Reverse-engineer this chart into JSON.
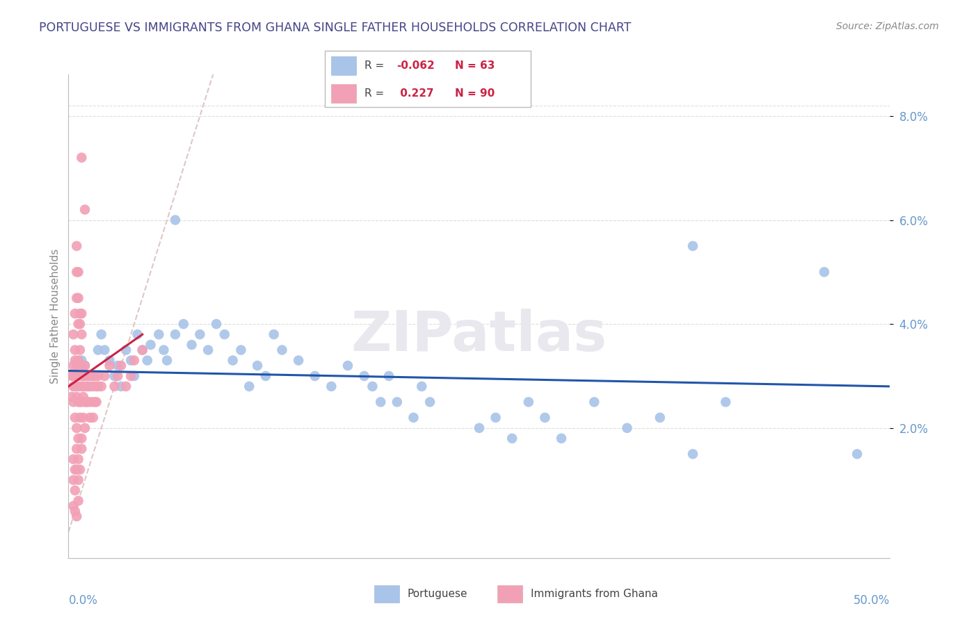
{
  "title": "PORTUGUESE VS IMMIGRANTS FROM GHANA SINGLE FATHER HOUSEHOLDS CORRELATION CHART",
  "source": "Source: ZipAtlas.com",
  "ylabel": "Single Father Households",
  "ytick_labels": [
    "2.0%",
    "4.0%",
    "6.0%",
    "8.0%"
  ],
  "ytick_values": [
    0.02,
    0.04,
    0.06,
    0.08
  ],
  "xlim": [
    0.0,
    0.5
  ],
  "ylim": [
    -0.005,
    0.088
  ],
  "legend_blue_label": "Portuguese",
  "legend_pink_label": "Immigrants from Ghana",
  "R_blue_text": "-0.062",
  "N_blue_text": "63",
  "R_pink_text": "0.227",
  "N_pink_text": "90",
  "blue_color": "#a8c4e8",
  "pink_color": "#f2a0b5",
  "blue_line_color": "#2255aa",
  "pink_line_color": "#cc2244",
  "diag_line_color": "#d8b8b8",
  "background_color": "#ffffff",
  "grid_color": "#dddddd",
  "title_color": "#444488",
  "axis_label_color": "#6699cc",
  "watermark_text": "ZIPatlas",
  "watermark_color": "#e8e8ee"
}
